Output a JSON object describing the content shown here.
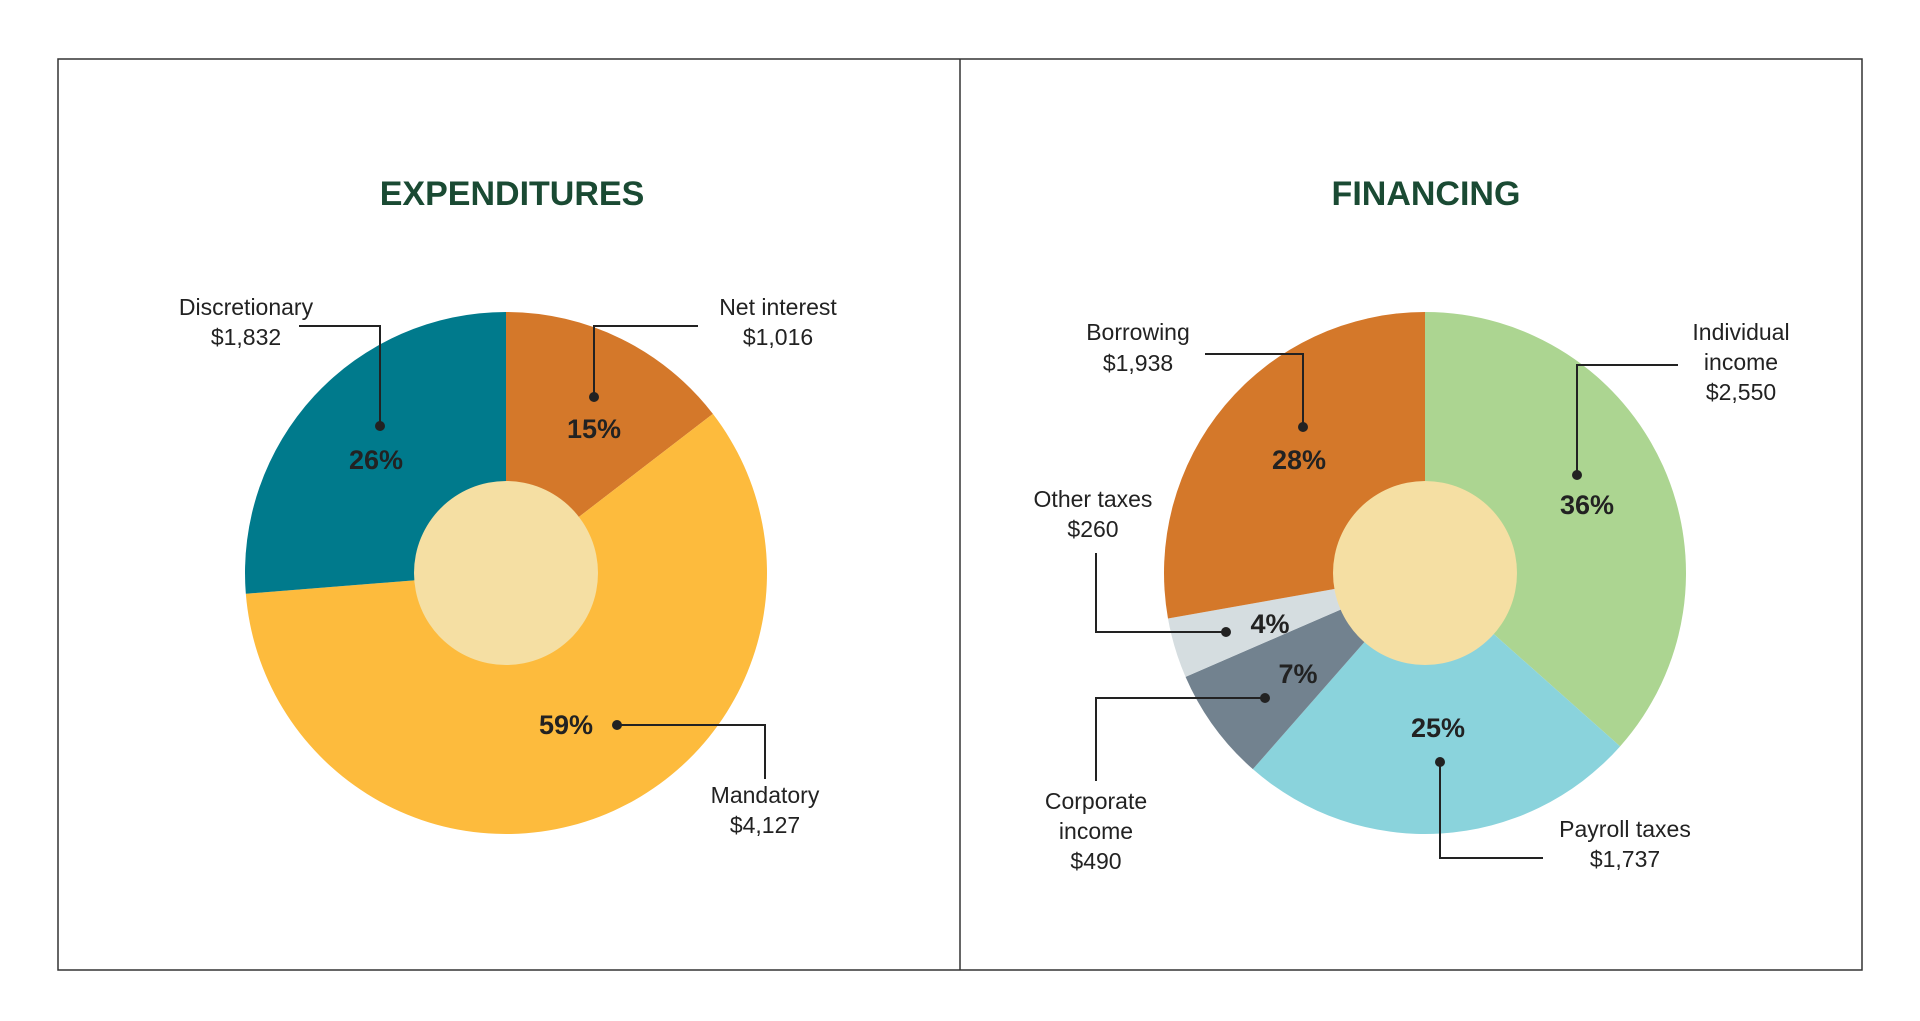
{
  "chart_data": [
    {
      "type": "pie",
      "title": "EXPENDITURES",
      "categories": [
        "Discretionary",
        "Net interest",
        "Mandatory"
      ],
      "values": [
        1832,
        1016,
        4127
      ],
      "value_labels": [
        "$1,832",
        "$1,016",
        "$4,127"
      ],
      "percents": [
        26,
        15,
        59
      ],
      "percent_labels": [
        "26%",
        "15%",
        "59%"
      ],
      "colors": [
        "#007a8c",
        "#d4782a",
        "#fdbb3d"
      ],
      "slice_order": [
        1,
        2,
        0
      ]
    },
    {
      "type": "pie",
      "title": "FINANCING",
      "categories": [
        "Borrowing",
        "Individual\nincome",
        "Other taxes",
        "Corporate\nincome",
        "Payroll taxes"
      ],
      "values": [
        1938,
        2550,
        260,
        490,
        1737
      ],
      "value_labels": [
        "$1,938",
        "$2,550",
        "$260",
        "$490",
        "$1,737"
      ],
      "percents": [
        28,
        36,
        4,
        7,
        25
      ],
      "percent_labels": [
        "28%",
        "36%",
        "4%",
        "7%",
        "25%"
      ],
      "colors": [
        "#d4782a",
        "#acd591",
        "#d5dde0",
        "#72828f",
        "#8ad3dc"
      ],
      "slice_order": [
        1,
        4,
        3,
        2,
        0
      ]
    }
  ]
}
